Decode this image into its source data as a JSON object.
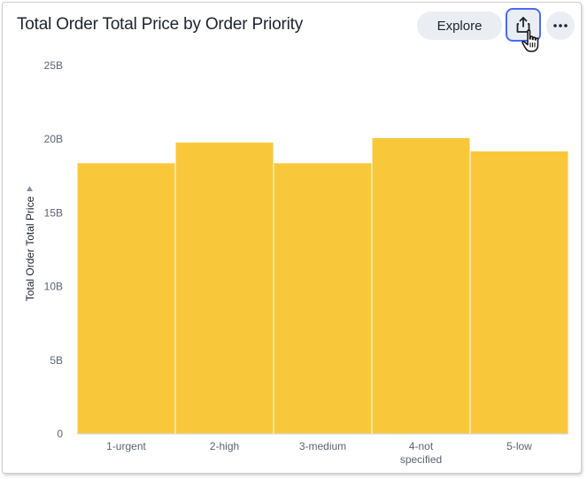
{
  "card": {
    "title": "Total Order Total Price by Order Priority",
    "explore_label": "Explore"
  },
  "icons": {
    "share": "share-icon",
    "more": "more-icon",
    "cursor": "hand-pointer-icon",
    "axis_menu": "caret-down-icon"
  },
  "colors": {
    "bar": "#f9c83a",
    "accent": "#4a6cf0",
    "button_bg": "#eaedf2"
  },
  "chart_data": {
    "type": "bar",
    "title": "Total Order Total Price by Order Priority",
    "xlabel": "",
    "ylabel": "Total Order Total Price",
    "categories": [
      "1-urgent",
      "2-high",
      "3-medium",
      "4-not specified",
      "5-low"
    ],
    "category_label_lines": [
      [
        "1-urgent"
      ],
      [
        "2-high"
      ],
      [
        "3-medium"
      ],
      [
        "4-not",
        "specified"
      ],
      [
        "5-low"
      ]
    ],
    "values": [
      18400000000,
      19800000000,
      18400000000,
      20100000000,
      19200000000
    ],
    "ylim": [
      0,
      25000000000
    ],
    "yticks": [
      0,
      5000000000,
      10000000000,
      15000000000,
      20000000000,
      25000000000
    ],
    "ytick_labels": [
      "0",
      "5B",
      "10B",
      "15B",
      "20B",
      "25B"
    ],
    "grid": false,
    "legend": "none"
  }
}
